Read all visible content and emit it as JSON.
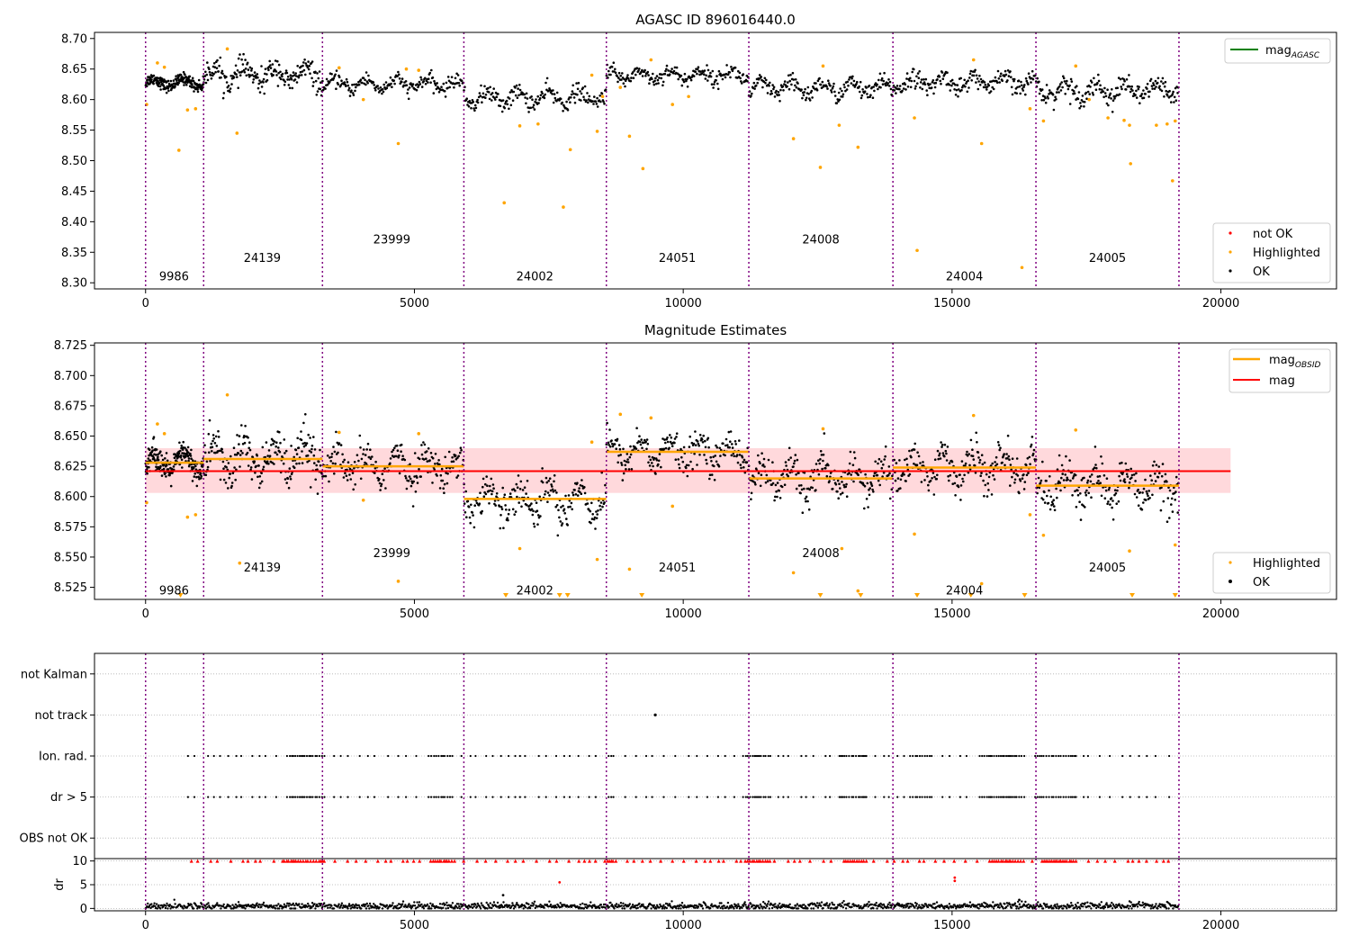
{
  "figure": {
    "background": "#ffffff"
  },
  "colors": {
    "ok": "#000000",
    "highlighted": "#ffa500",
    "not_ok": "#ff0000",
    "mag_agasc": "#008000",
    "mag": "#ff0000",
    "mag_obsid": "#ffa500",
    "obsid_line": "#800080",
    "band": "#ffc0c4"
  },
  "chart_data": [
    {
      "id": "top",
      "type": "scatter",
      "title": "AGASC ID 896016440.0",
      "xlim": [
        -950,
        22150
      ],
      "ylim": [
        8.29,
        8.71
      ],
      "xticks": [
        0,
        5000,
        10000,
        15000,
        20000
      ],
      "yticks": [
        8.3,
        8.35,
        8.4,
        8.45,
        8.5,
        8.55,
        8.6,
        8.65,
        8.7
      ],
      "ytick_labels": [
        "8.30",
        "8.35",
        "8.40",
        "8.45",
        "8.50",
        "8.55",
        "8.60",
        "8.65",
        "8.70"
      ],
      "obsid_boundaries": [
        0,
        1080,
        3290,
        5920,
        8570,
        11220,
        13900,
        16560,
        19220
      ],
      "obsid_labels": [
        {
          "text": "9986",
          "x": 530,
          "y": 8.31
        },
        {
          "text": "24139",
          "x": 2170,
          "y": 8.34
        },
        {
          "text": "23999",
          "x": 4580,
          "y": 8.37
        },
        {
          "text": "24002",
          "x": 7240,
          "y": 8.31
        },
        {
          "text": "24051",
          "x": 9890,
          "y": 8.34
        },
        {
          "text": "24008",
          "x": 12560,
          "y": 8.37
        },
        {
          "text": "24004",
          "x": 15230,
          "y": 8.31
        },
        {
          "text": "24005",
          "x": 17890,
          "y": 8.34
        }
      ],
      "segment_means": [
        8.628,
        8.64,
        8.625,
        8.603,
        8.64,
        8.618,
        8.628,
        8.615
      ],
      "segment_spread": [
        0.008,
        0.016,
        0.01,
        0.012,
        0.01,
        0.012,
        0.012,
        0.014
      ],
      "highlighted_points": [
        [
          20,
          8.592
        ],
        [
          220,
          8.66
        ],
        [
          350,
          8.653
        ],
        [
          620,
          8.517
        ],
        [
          780,
          8.583
        ],
        [
          930,
          8.585
        ],
        [
          1700,
          8.545
        ],
        [
          1520,
          8.683
        ],
        [
          3600,
          8.652
        ],
        [
          4050,
          8.6
        ],
        [
          4700,
          8.528
        ],
        [
          4850,
          8.65
        ],
        [
          5080,
          8.648
        ],
        [
          6670,
          8.431
        ],
        [
          6960,
          8.557
        ],
        [
          7300,
          8.56
        ],
        [
          7770,
          8.424
        ],
        [
          7900,
          8.518
        ],
        [
          8300,
          8.64
        ],
        [
          8400,
          8.548
        ],
        [
          8500,
          8.605
        ],
        [
          8830,
          8.62
        ],
        [
          9250,
          8.487
        ],
        [
          9000,
          8.54
        ],
        [
          9400,
          8.665
        ],
        [
          9800,
          8.592
        ],
        [
          10100,
          8.605
        ],
        [
          12050,
          8.536
        ],
        [
          12550,
          8.489
        ],
        [
          12600,
          8.655
        ],
        [
          12900,
          8.558
        ],
        [
          13250,
          8.522
        ],
        [
          14300,
          8.57
        ],
        [
          14350,
          8.353
        ],
        [
          15400,
          8.665
        ],
        [
          15550,
          8.528
        ],
        [
          16300,
          8.325
        ],
        [
          16450,
          8.585
        ],
        [
          16700,
          8.565
        ],
        [
          17300,
          8.655
        ],
        [
          17550,
          8.6
        ],
        [
          17900,
          8.57
        ],
        [
          18200,
          8.566
        ],
        [
          18300,
          8.558
        ],
        [
          18320,
          8.495
        ],
        [
          18800,
          8.558
        ],
        [
          19000,
          8.56
        ],
        [
          19100,
          8.467
        ],
        [
          19150,
          8.565
        ]
      ],
      "legend_upper": {
        "entries": [
          "mag_AGASC"
        ]
      },
      "legend_lower": {
        "entries": [
          "not OK",
          "Highlighted",
          "OK"
        ]
      }
    },
    {
      "id": "middle",
      "type": "scatter",
      "title": "Magnitude Estimates",
      "xlim": [
        -950,
        22150
      ],
      "ylim": [
        8.515,
        8.727
      ],
      "xticks": [
        0,
        5000,
        10000,
        15000,
        20000
      ],
      "yticks": [
        8.525,
        8.55,
        8.575,
        8.6,
        8.625,
        8.65,
        8.675,
        8.7,
        8.725
      ],
      "ytick_labels": [
        "8.525",
        "8.550",
        "8.575",
        "8.600",
        "8.625",
        "8.650",
        "8.675",
        "8.700",
        "8.725"
      ],
      "obsid_boundaries": [
        0,
        1080,
        3290,
        5920,
        8570,
        11220,
        13900,
        16560,
        19220
      ],
      "obsid_labels": [
        {
          "text": "9986",
          "x": 530,
          "y": 8.522
        },
        {
          "text": "24139",
          "x": 2170,
          "y": 8.541
        },
        {
          "text": "23999",
          "x": 4580,
          "y": 8.553
        },
        {
          "text": "24002",
          "x": 7240,
          "y": 8.522
        },
        {
          "text": "24051",
          "x": 9890,
          "y": 8.541
        },
        {
          "text": "24008",
          "x": 12560,
          "y": 8.553
        },
        {
          "text": "24004",
          "x": 15230,
          "y": 8.522
        },
        {
          "text": "24005",
          "x": 17890,
          "y": 8.541
        }
      ],
      "mag": 8.621,
      "mag_band": [
        8.603,
        8.64
      ],
      "mag_band_xrange": [
        0,
        20180
      ],
      "obsid_mags": [
        8.628,
        8.631,
        8.625,
        8.598,
        8.637,
        8.615,
        8.624,
        8.609
      ],
      "segment_spread": [
        0.009,
        0.016,
        0.012,
        0.013,
        0.011,
        0.013,
        0.013,
        0.015
      ],
      "highlighted_points": [
        [
          20,
          8.595
        ],
        [
          220,
          8.66
        ],
        [
          350,
          8.652
        ],
        [
          780,
          8.583
        ],
        [
          930,
          8.585
        ],
        [
          1520,
          8.684
        ],
        [
          1750,
          8.545
        ],
        [
          3600,
          8.653
        ],
        [
          4050,
          8.597
        ],
        [
          4700,
          8.53
        ],
        [
          5080,
          8.652
        ],
        [
          6960,
          8.557
        ],
        [
          8300,
          8.645
        ],
        [
          8400,
          8.548
        ],
        [
          8830,
          8.668
        ],
        [
          9000,
          8.54
        ],
        [
          9400,
          8.665
        ],
        [
          9800,
          8.592
        ],
        [
          12050,
          8.537
        ],
        [
          12600,
          8.656
        ],
        [
          12950,
          8.557
        ],
        [
          13250,
          8.522
        ],
        [
          14300,
          8.569
        ],
        [
          15400,
          8.667
        ],
        [
          15550,
          8.528
        ],
        [
          16450,
          8.585
        ],
        [
          16700,
          8.568
        ],
        [
          17300,
          8.655
        ],
        [
          18300,
          8.555
        ],
        [
          19150,
          8.56
        ]
      ],
      "below_range_markers": [
        650,
        6700,
        7700,
        7850,
        9230,
        12550,
        13300,
        14350,
        15350,
        16350,
        18350,
        19150
      ],
      "legend_upper": {
        "entries": [
          "mag_OBSID",
          "mag"
        ]
      },
      "legend_lower": {
        "entries": [
          "Highlighted",
          "OK"
        ]
      }
    },
    {
      "id": "flags",
      "type": "scatter",
      "xlim": [
        -950,
        22150
      ],
      "ylim": [
        -0.5,
        4.5
      ],
      "yticks": [
        0,
        1,
        2,
        3,
        4
      ],
      "ytick_labels": [
        "OBS not OK",
        "dr > 5",
        "Ion. rad.",
        "not track",
        "not Kalman"
      ],
      "obsid_boundaries": [
        0,
        1080,
        3290,
        5920,
        8570,
        11220,
        13900,
        16560,
        19220
      ],
      "not_track_points": [
        9480
      ],
      "flag_cluster_ranges": [
        [
          2500,
          3300
        ],
        [
          5200,
          5700
        ],
        [
          8400,
          8700
        ],
        [
          11100,
          11600
        ],
        [
          12900,
          13400
        ],
        [
          14200,
          14600
        ],
        [
          15500,
          16300
        ],
        [
          16500,
          17300
        ]
      ]
    },
    {
      "id": "dr",
      "type": "scatter",
      "ylabel": "dr",
      "xlim": [
        -950,
        22150
      ],
      "ylim": [
        -0.5,
        10.5
      ],
      "xticks": [
        0,
        5000,
        10000,
        15000,
        20000
      ],
      "yticks": [
        0,
        5,
        10
      ],
      "ytick_labels": [
        "0",
        "5",
        "10"
      ],
      "obsid_boundaries": [
        0,
        1080,
        3290,
        5920,
        8570,
        11220,
        13900,
        16560,
        19220
      ],
      "outlier_points": [
        [
          7700,
          5.5
        ],
        [
          15050,
          6.5
        ],
        [
          15050,
          5.8
        ],
        [
          6650,
          2.8
        ],
        [
          16250,
          1.8
        ]
      ],
      "capped_ranges": [
        [
          2500,
          3300
        ],
        [
          5200,
          5700
        ],
        [
          8400,
          8700
        ],
        [
          11100,
          11600
        ],
        [
          12900,
          13400
        ],
        [
          15500,
          16300
        ],
        [
          16500,
          17300
        ]
      ]
    }
  ]
}
